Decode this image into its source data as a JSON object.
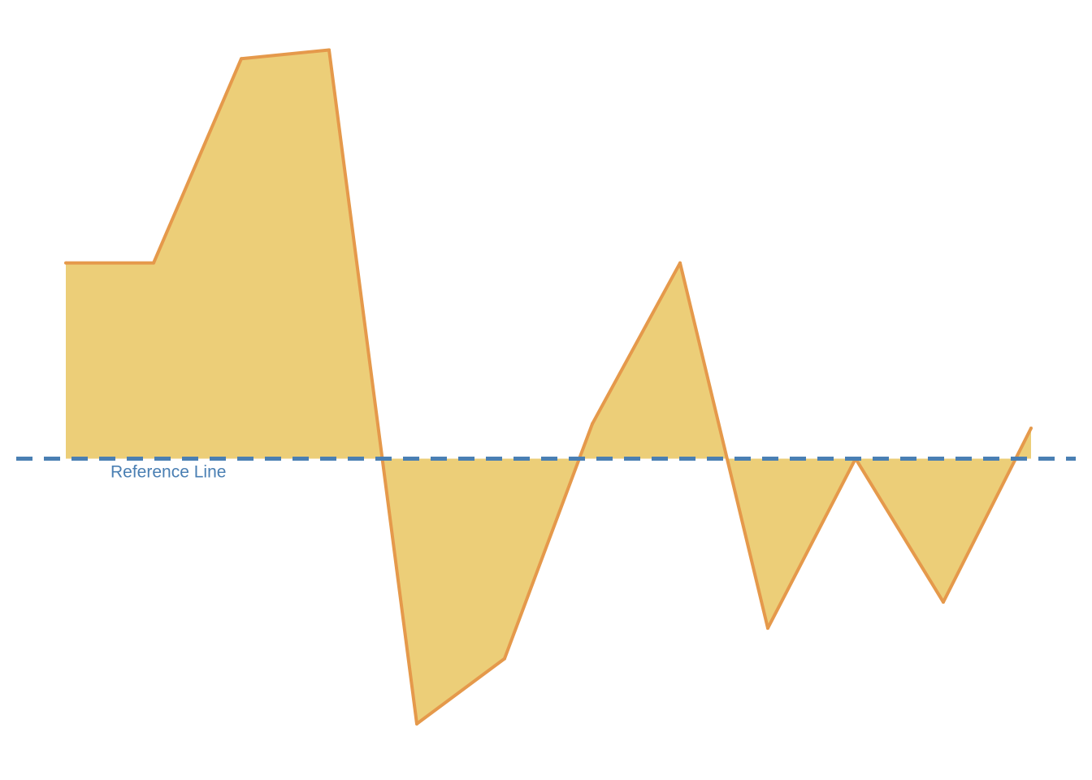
{
  "chart_data": {
    "type": "area",
    "title": "",
    "xlabel": "",
    "ylabel": "",
    "x": [
      0,
      1,
      2,
      3,
      4,
      5,
      6,
      7,
      8,
      9,
      10,
      11
    ],
    "values": [
      45,
      45,
      92,
      94,
      -61,
      -46,
      8,
      45,
      -39,
      0,
      -33,
      7
    ],
    "ylim": [
      -70,
      104
    ],
    "grid": false,
    "axes_visible": false,
    "reference_line": {
      "value": 0,
      "label": "Reference Line",
      "style": "dashed"
    },
    "colors": {
      "fill": "#ecce78",
      "line": "#e5994b",
      "reference": "#4a7fb3"
    }
  }
}
